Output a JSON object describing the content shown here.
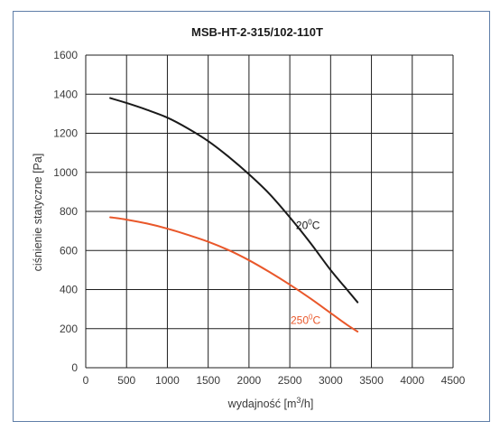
{
  "chart_data": {
    "type": "line",
    "title": "MSB-HT-2-315/102-110T",
    "xlabel_text": "wydajność [m",
    "xlabel_sup": "3",
    "xlabel_tail": "/h]",
    "ylabel": "ciśnienie statyczne [Pa]",
    "xlim": [
      0,
      4500
    ],
    "ylim": [
      0,
      1600
    ],
    "x_ticks": [
      "0",
      "500",
      "1000",
      "1500",
      "2000",
      "2500",
      "3000",
      "3500",
      "4000",
      "4500"
    ],
    "y_ticks": [
      "0",
      "200",
      "400",
      "600",
      "800",
      "1000",
      "1200",
      "1400",
      "1600"
    ],
    "grid": true,
    "series": [
      {
        "name": "20⁰C",
        "label_main": "20",
        "label_sup": "0",
        "label_tail": "C",
        "color": "#1a1a1a",
        "x": [
          300,
          500,
          750,
          1000,
          1250,
          1500,
          1750,
          2000,
          2250,
          2500,
          2750,
          3000,
          3200,
          3330
        ],
        "y": [
          1380,
          1355,
          1320,
          1280,
          1225,
          1160,
          1080,
          990,
          890,
          770,
          640,
          500,
          400,
          335
        ]
      },
      {
        "name": "250⁰C",
        "label_main": "250",
        "label_sup": "0",
        "label_tail": "C",
        "color": "#e9572a",
        "x": [
          300,
          500,
          750,
          1000,
          1250,
          1500,
          1750,
          2000,
          2250,
          2500,
          2750,
          3000,
          3200,
          3330
        ],
        "y": [
          770,
          758,
          738,
          712,
          680,
          645,
          602,
          550,
          490,
          425,
          355,
          280,
          220,
          185
        ]
      }
    ]
  }
}
